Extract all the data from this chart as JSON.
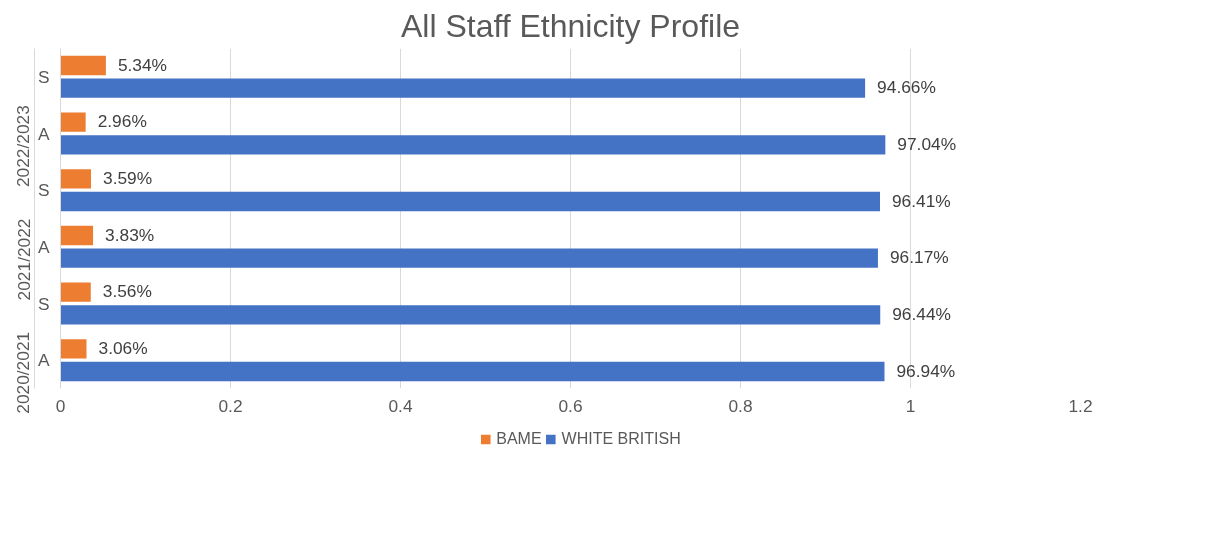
{
  "chart_data": {
    "type": "bar",
    "orientation": "horizontal",
    "title": "All Staff Ethnicity Profile",
    "categories": [
      "S",
      "A",
      "S",
      "A",
      "S",
      "A"
    ],
    "annotations": [
      "2022/2023",
      "2021/2022",
      "2020/2021"
    ],
    "series": [
      {
        "name": "BAME",
        "color": "#ed7d31",
        "values": [
          0.0534,
          0.0296,
          0.0359,
          0.0383,
          0.0356,
          0.0306
        ],
        "value_labels": [
          "5.34%",
          "2.96%",
          "3.59%",
          "3.83%",
          "3.56%",
          "3.06%"
        ]
      },
      {
        "name": "WHITE BRITISH",
        "color": "#4472c4",
        "values": [
          0.9466,
          0.9704,
          0.9641,
          0.9617,
          0.9644,
          0.9694
        ],
        "value_labels": [
          "94.66%",
          "97.04%",
          "96.41%",
          "96.17%",
          "96.44%",
          "96.94%"
        ]
      }
    ],
    "xlim": [
      0,
      1.2
    ],
    "xticks": [
      0,
      0.2,
      0.4,
      0.6,
      0.8,
      1,
      1.2
    ],
    "grid": "x",
    "legend": "bottom"
  }
}
